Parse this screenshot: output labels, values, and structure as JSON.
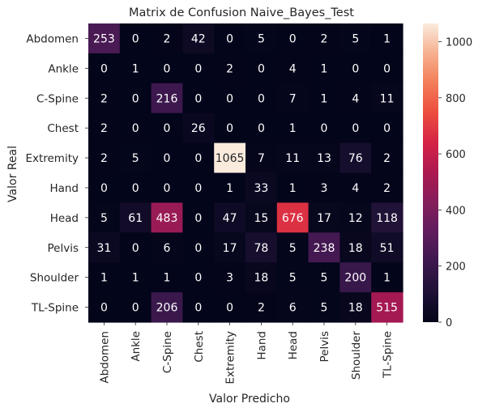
{
  "chart_data": {
    "type": "heatmap",
    "title": "Matrix de Confusion Naive_Bayes_Test",
    "xlabel": "Valor Predicho",
    "ylabel": "Valor Real",
    "x_categories": [
      "Abdomen",
      "Ankle",
      "C-Spine",
      "Chest",
      "Extremity",
      "Hand",
      "Head",
      "Pelvis",
      "Shoulder",
      "TL-Spine"
    ],
    "y_categories": [
      "Abdomen",
      "Ankle",
      "C-Spine",
      "Chest",
      "Extremity",
      "Hand",
      "Head",
      "Pelvis",
      "Shoulder",
      "TL-Spine"
    ],
    "values": [
      [
        253,
        0,
        2,
        42,
        0,
        5,
        0,
        2,
        5,
        1
      ],
      [
        0,
        1,
        0,
        0,
        2,
        0,
        4,
        1,
        0,
        0
      ],
      [
        2,
        0,
        216,
        0,
        0,
        0,
        7,
        1,
        4,
        11
      ],
      [
        2,
        0,
        0,
        26,
        0,
        0,
        1,
        0,
        0,
        0
      ],
      [
        2,
        5,
        0,
        0,
        1065,
        7,
        11,
        13,
        76,
        2
      ],
      [
        0,
        0,
        0,
        0,
        1,
        33,
        1,
        3,
        4,
        2
      ],
      [
        5,
        61,
        483,
        0,
        47,
        15,
        676,
        17,
        12,
        118
      ],
      [
        31,
        0,
        6,
        0,
        17,
        78,
        5,
        238,
        18,
        51
      ],
      [
        1,
        1,
        1,
        0,
        3,
        18,
        5,
        5,
        200,
        1
      ],
      [
        0,
        0,
        206,
        0,
        0,
        2,
        6,
        5,
        18,
        515
      ]
    ],
    "colorbar": {
      "colormap": "rocket",
      "range": [
        0,
        1065
      ],
      "ticks": [
        0,
        200,
        400,
        600,
        800,
        1000
      ]
    }
  }
}
